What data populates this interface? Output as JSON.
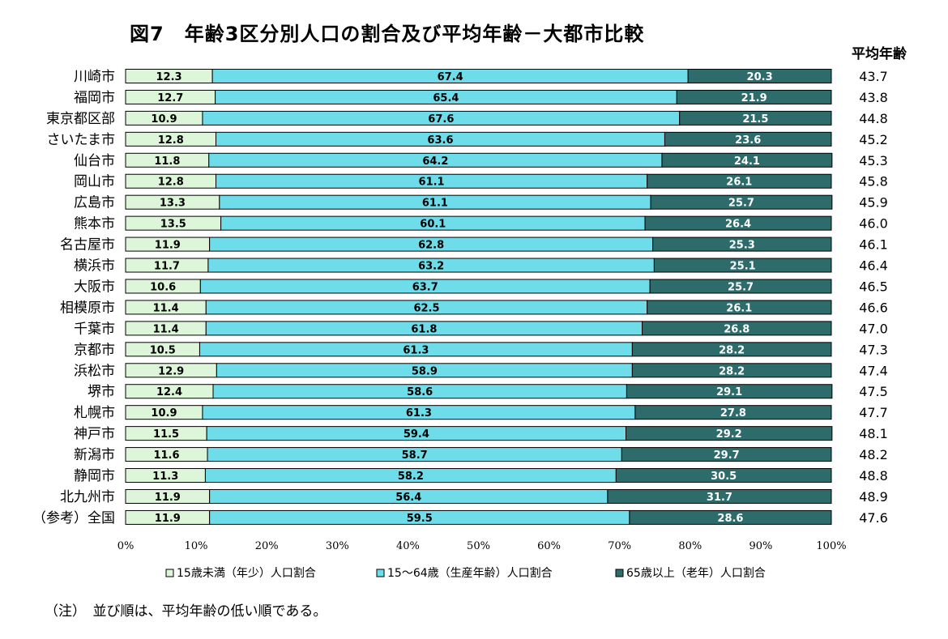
{
  "title": "図7　年齢3区分別人口の割合及び平均年齢－大都市比較",
  "note": "（注）　並び順は、平均年齢の低い順である。",
  "chart_data": {
    "type": "bar",
    "stacked": true,
    "orientation": "horizontal",
    "categories": [
      "川崎市",
      "福岡市",
      "東京都区部",
      "さいたま市",
      "仙台市",
      "岡山市",
      "広島市",
      "熊本市",
      "名古屋市",
      "横浜市",
      "大阪市",
      "相模原市",
      "千葉市",
      "京都市",
      "浜松市",
      "堺市",
      "札幌市",
      "神戸市",
      "新潟市",
      "静岡市",
      "北九州市",
      "（参考）全国"
    ],
    "series": [
      {
        "name": "15歳未満（年少）人口割合",
        "color": "#ddf5d8",
        "values": [
          12.3,
          12.7,
          10.9,
          12.8,
          11.8,
          12.8,
          13.3,
          13.5,
          11.9,
          11.7,
          10.6,
          11.4,
          11.4,
          10.5,
          12.9,
          12.4,
          10.9,
          11.5,
          11.6,
          11.3,
          11.9,
          11.9
        ]
      },
      {
        "name": "15～64歳（生産年齢）人口割合",
        "color": "#6fdcea",
        "values": [
          67.4,
          65.4,
          67.6,
          63.6,
          64.2,
          61.1,
          61.1,
          60.1,
          62.8,
          63.2,
          63.7,
          62.5,
          61.8,
          61.3,
          58.9,
          58.6,
          61.3,
          59.4,
          58.7,
          58.2,
          56.4,
          59.5
        ]
      },
      {
        "name": "65歳以上（老年）人口割合",
        "color": "#2e6b6b",
        "values": [
          20.3,
          21.9,
          21.5,
          23.6,
          24.1,
          26.1,
          25.7,
          26.4,
          25.3,
          25.1,
          25.7,
          26.1,
          26.8,
          28.2,
          28.2,
          29.1,
          27.8,
          29.2,
          29.7,
          30.5,
          31.7,
          28.6
        ]
      }
    ],
    "average_age_label": "平均年齢",
    "average_age": [
      "43.7",
      "43.8",
      "44.8",
      "45.2",
      "45.3",
      "45.8",
      "45.9",
      "46.0",
      "46.1",
      "46.4",
      "46.5",
      "46.6",
      "47.0",
      "47.3",
      "47.4",
      "47.5",
      "47.7",
      "48.1",
      "48.2",
      "48.8",
      "48.9",
      "47.6"
    ],
    "x_ticks": [
      "0%",
      "10%",
      "20%",
      "30%",
      "40%",
      "50%",
      "60%",
      "70%",
      "80%",
      "90%",
      "100%"
    ],
    "xlim": [
      0,
      100
    ],
    "legend_position": "bottom",
    "grid": false
  }
}
